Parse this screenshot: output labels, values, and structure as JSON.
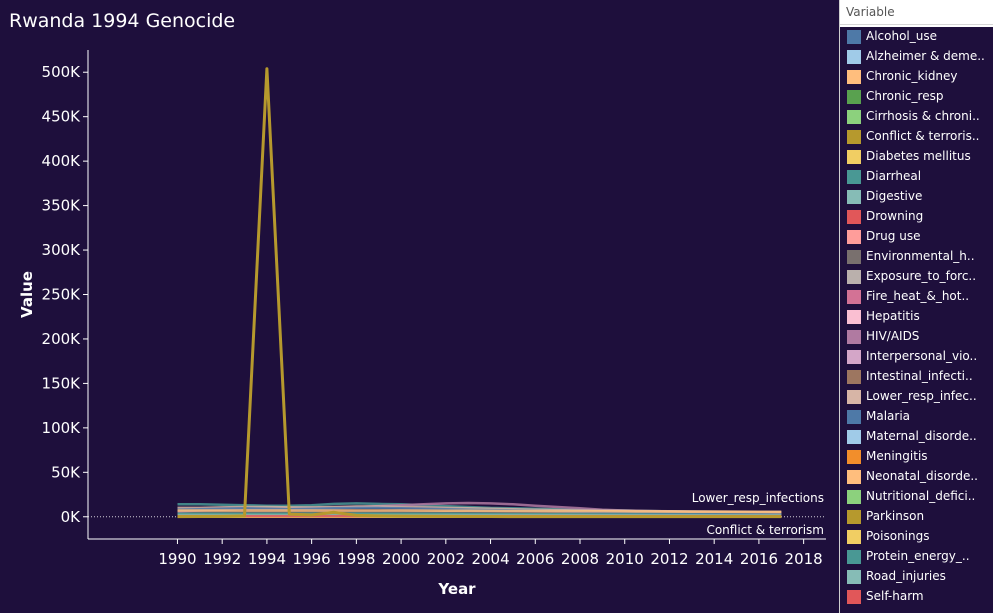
{
  "chart_data": {
    "type": "line",
    "title": "Rwanda 1994 Genocide",
    "xlabel": "Year",
    "ylabel": "Value",
    "xlim": [
      1986,
      2019
    ],
    "ylim": [
      -25000,
      525000
    ],
    "x_ticks": [
      1990,
      1992,
      1994,
      1996,
      1998,
      2000,
      2002,
      2004,
      2006,
      2008,
      2010,
      2012,
      2014,
      2016,
      2018
    ],
    "y_ticks": [
      {
        "value": 0,
        "label": "0K"
      },
      {
        "value": 50000,
        "label": "50K"
      },
      {
        "value": 100000,
        "label": "100K"
      },
      {
        "value": 150000,
        "label": "150K"
      },
      {
        "value": 200000,
        "label": "200K"
      },
      {
        "value": 250000,
        "label": "250K"
      },
      {
        "value": 300000,
        "label": "300K"
      },
      {
        "value": 350000,
        "label": "350K"
      },
      {
        "value": 400000,
        "label": "400K"
      },
      {
        "value": 450000,
        "label": "450K"
      },
      {
        "value": 500000,
        "label": "500K"
      }
    ],
    "grid": false,
    "legend_placement": "right",
    "legend_title": "Variable",
    "x": [
      1990,
      1991,
      1992,
      1993,
      1994,
      1995,
      1996,
      1997,
      1998,
      1999,
      2000,
      2001,
      2002,
      2003,
      2004,
      2005,
      2006,
      2007,
      2008,
      2009,
      2010,
      2011,
      2012,
      2013,
      2014,
      2015,
      2016,
      2017
    ],
    "series": [
      {
        "name": "Alcohol_use",
        "color": "#4e79a7",
        "values": [
          3000,
          3000,
          3100,
          3100,
          3200,
          3100,
          3100,
          3200,
          3200,
          3200,
          3200,
          3200,
          3200,
          3200,
          3100,
          3100,
          3100,
          3000,
          3000,
          3000,
          2900,
          2900,
          2900,
          2900,
          2800,
          2800,
          2800,
          2800
        ]
      },
      {
        "name": "Alzheimer & deme..",
        "color": "#a0cbe8",
        "values": [
          1200,
          1200,
          1200,
          1200,
          1200,
          1200,
          1200,
          1300,
          1300,
          1300,
          1300,
          1300,
          1300,
          1400,
          1400,
          1400,
          1400,
          1400,
          1500,
          1500,
          1500,
          1500,
          1600,
          1600,
          1600,
          1600,
          1700,
          1700
        ]
      },
      {
        "name": "Chronic_kidney",
        "color": "#ffbe7d",
        "values": [
          1800,
          1800,
          1800,
          1900,
          1900,
          1900,
          1900,
          2000,
          2000,
          2000,
          2000,
          2000,
          2000,
          2000,
          2000,
          2000,
          2000,
          2000,
          2000,
          2000,
          2000,
          2000,
          2000,
          2000,
          2000,
          2000,
          2000,
          2000
        ]
      },
      {
        "name": "Chronic_resp",
        "color": "#59a14f",
        "values": [
          2500,
          2500,
          2500,
          2600,
          2600,
          2600,
          2600,
          2700,
          2700,
          2700,
          2700,
          2700,
          2700,
          2700,
          2700,
          2700,
          2700,
          2600,
          2600,
          2600,
          2600,
          2600,
          2600,
          2600,
          2500,
          2500,
          2500,
          2500
        ]
      },
      {
        "name": "Cirrhosis & chroni..",
        "color": "#8cd17d",
        "values": [
          2000,
          2000,
          2000,
          2100,
          2100,
          2100,
          2100,
          2100,
          2100,
          2100,
          2100,
          2100,
          2100,
          2100,
          2100,
          2100,
          2000,
          2000,
          2000,
          2000,
          2000,
          2000,
          2000,
          1900,
          1900,
          1900,
          1900,
          1900
        ]
      },
      {
        "name": "Conflict & terroris..",
        "color": "#b6992d",
        "values": [
          200,
          300,
          400,
          1000,
          504000,
          3000,
          2000,
          5000,
          1500,
          1000,
          800,
          500,
          400,
          300,
          300,
          200,
          200,
          200,
          200,
          200,
          200,
          200,
          200,
          200,
          200,
          200,
          200,
          200
        ]
      },
      {
        "name": "Diabetes mellitus",
        "color": "#f1ce63",
        "values": [
          1800,
          1800,
          1800,
          1800,
          1800,
          1800,
          1800,
          1900,
          1900,
          1900,
          1900,
          1900,
          1900,
          1900,
          2000,
          2000,
          2000,
          2000,
          2000,
          2000,
          2000,
          2100,
          2100,
          2100,
          2100,
          2100,
          2100,
          2100
        ]
      },
      {
        "name": "Diarrheal",
        "color": "#499894",
        "values": [
          14000,
          14000,
          13500,
          13000,
          12500,
          12500,
          13000,
          14500,
          15000,
          14500,
          14000,
          13000,
          12000,
          11000,
          10000,
          9500,
          9000,
          8500,
          8000,
          7500,
          7000,
          6500,
          6000,
          5800,
          5600,
          5400,
          5200,
          5000
        ]
      },
      {
        "name": "Digestive",
        "color": "#86bcb6",
        "values": [
          1500,
          1500,
          1500,
          1500,
          1500,
          1500,
          1500,
          1600,
          1600,
          1600,
          1600,
          1600,
          1600,
          1600,
          1600,
          1600,
          1600,
          1600,
          1600,
          1600,
          1600,
          1600,
          1600,
          1600,
          1600,
          1600,
          1600,
          1600
        ]
      },
      {
        "name": "Drowning",
        "color": "#e15759",
        "values": [
          900,
          900,
          900,
          900,
          900,
          900,
          900,
          900,
          900,
          900,
          900,
          900,
          900,
          900,
          900,
          900,
          900,
          800,
          800,
          800,
          800,
          800,
          800,
          800,
          800,
          800,
          800,
          800
        ]
      },
      {
        "name": "Drug use",
        "color": "#ff9d9a",
        "values": [
          100,
          100,
          100,
          100,
          100,
          100,
          100,
          100,
          100,
          100,
          100,
          100,
          100,
          100,
          100,
          100,
          100,
          100,
          100,
          100,
          100,
          100,
          100,
          100,
          100,
          100,
          100,
          100
        ]
      },
      {
        "name": "Environmental_h..",
        "color": "#79706e",
        "values": [
          5000,
          5000,
          5000,
          5000,
          5000,
          5000,
          5000,
          5100,
          5100,
          5100,
          5100,
          5000,
          5000,
          4900,
          4800,
          4700,
          4600,
          4500,
          4400,
          4300,
          4200,
          4100,
          4000,
          3900,
          3800,
          3700,
          3600,
          3500
        ]
      },
      {
        "name": "Exposure_to_forc..",
        "color": "#bab0ac",
        "values": [
          300,
          300,
          300,
          300,
          300,
          300,
          300,
          300,
          300,
          300,
          300,
          300,
          300,
          300,
          300,
          300,
          300,
          300,
          300,
          300,
          300,
          300,
          300,
          300,
          300,
          300,
          300,
          300
        ]
      },
      {
        "name": "Fire_heat_&_hot..",
        "color": "#d37295",
        "values": [
          600,
          600,
          600,
          600,
          600,
          600,
          600,
          600,
          600,
          600,
          600,
          600,
          600,
          600,
          600,
          600,
          600,
          600,
          600,
          600,
          600,
          600,
          600,
          600,
          600,
          600,
          600,
          600
        ]
      },
      {
        "name": "Hepatitis",
        "color": "#fabfd2",
        "values": [
          400,
          400,
          400,
          400,
          400,
          400,
          400,
          400,
          400,
          400,
          400,
          400,
          400,
          400,
          400,
          400,
          400,
          400,
          400,
          400,
          400,
          400,
          400,
          400,
          400,
          400,
          400,
          400
        ]
      },
      {
        "name": "HIV/AIDS",
        "color": "#b07aa1",
        "values": [
          6000,
          7000,
          8000,
          9000,
          9000,
          9000,
          9500,
          10000,
          11000,
          12000,
          13000,
          14000,
          15000,
          15500,
          15000,
          14000,
          12500,
          11000,
          9500,
          8000,
          7000,
          6500,
          6000,
          5500,
          5200,
          5000,
          4800,
          4600
        ]
      },
      {
        "name": "Interpersonal_vio..",
        "color": "#d4a6c8",
        "values": [
          1500,
          1500,
          1500,
          1500,
          1500,
          1500,
          1500,
          1500,
          1500,
          1500,
          1400,
          1400,
          1400,
          1400,
          1300,
          1300,
          1300,
          1300,
          1300,
          1200,
          1200,
          1200,
          1200,
          1200,
          1200,
          1200,
          1200,
          1200
        ]
      },
      {
        "name": "Intestinal_infecti..",
        "color": "#9d7660",
        "values": [
          2500,
          2500,
          2500,
          2500,
          2500,
          2500,
          2500,
          2600,
          2600,
          2600,
          2600,
          2500,
          2500,
          2400,
          2400,
          2300,
          2300,
          2200,
          2200,
          2100,
          2100,
          2000,
          2000,
          2000,
          1900,
          1900,
          1900,
          1900
        ]
      },
      {
        "name": "Lower_resp_infec..",
        "color": "#d7b5a6",
        "values": [
          10000,
          10000,
          10500,
          11000,
          11000,
          10500,
          10500,
          11000,
          11500,
          11500,
          11000,
          10500,
          10000,
          9500,
          9000,
          8500,
          8000,
          7500,
          7000,
          6800,
          6600,
          6400,
          6200,
          6000,
          5900,
          5800,
          5700,
          5600
        ]
      },
      {
        "name": "Malaria",
        "color": "#4e79a7",
        "values": [
          8000,
          8500,
          9000,
          9500,
          9000,
          8500,
          9000,
          9500,
          10000,
          10000,
          9500,
          9000,
          8500,
          8000,
          7500,
          7000,
          6500,
          6000,
          5500,
          5000,
          4500,
          4200,
          4000,
          3800,
          3600,
          3400,
          3200,
          3000
        ]
      },
      {
        "name": "Maternal_disorde..",
        "color": "#a0cbe8",
        "values": [
          2000,
          2000,
          2000,
          2000,
          2000,
          2000,
          2000,
          2000,
          2000,
          2000,
          1900,
          1900,
          1800,
          1700,
          1600,
          1500,
          1400,
          1300,
          1200,
          1100,
          1000,
          950,
          900,
          850,
          800,
          800,
          750,
          750
        ]
      },
      {
        "name": "Meningitis",
        "color": "#f28e2b",
        "values": [
          2000,
          2000,
          2000,
          2000,
          2000,
          2000,
          2000,
          2000,
          2000,
          2000,
          1900,
          1900,
          1800,
          1800,
          1700,
          1700,
          1600,
          1600,
          1500,
          1500,
          1400,
          1400,
          1300,
          1300,
          1200,
          1200,
          1200,
          1100
        ]
      },
      {
        "name": "Neonatal_disorde..",
        "color": "#ffbe7d",
        "values": [
          7000,
          7000,
          7000,
          7000,
          7000,
          7000,
          7000,
          7100,
          7100,
          7000,
          7000,
          6900,
          6800,
          6700,
          6600,
          6500,
          6400,
          6300,
          6200,
          6100,
          6000,
          5900,
          5800,
          5700,
          5600,
          5500,
          5400,
          5300
        ]
      },
      {
        "name": "Nutritional_defici..",
        "color": "#8cd17d",
        "values": [
          3000,
          3000,
          3000,
          3000,
          3000,
          3000,
          3000,
          3100,
          3100,
          3000,
          3000,
          2900,
          2800,
          2700,
          2600,
          2500,
          2400,
          2300,
          2200,
          2100,
          2000,
          1900,
          1800,
          1700,
          1600,
          1500,
          1400,
          1300
        ]
      },
      {
        "name": "Parkinson",
        "color": "#b6992d",
        "values": [
          100,
          100,
          100,
          100,
          100,
          100,
          100,
          100,
          100,
          100,
          100,
          100,
          100,
          100,
          100,
          100,
          100,
          100,
          100,
          100,
          100,
          100,
          100,
          100,
          100,
          100,
          100,
          100
        ]
      },
      {
        "name": "Poisonings",
        "color": "#f1ce63",
        "values": [
          200,
          200,
          200,
          200,
          200,
          200,
          200,
          200,
          200,
          200,
          200,
          200,
          200,
          200,
          200,
          200,
          200,
          200,
          200,
          200,
          200,
          200,
          200,
          200,
          200,
          200,
          200,
          200
        ]
      },
      {
        "name": "Protein_energy_..",
        "color": "#499894",
        "values": [
          3500,
          3500,
          3500,
          3500,
          3500,
          3500,
          3500,
          3600,
          3600,
          3500,
          3500,
          3400,
          3300,
          3200,
          3100,
          3000,
          2900,
          2800,
          2700,
          2600,
          2500,
          2400,
          2300,
          2200,
          2100,
          2000,
          1900,
          1800
        ]
      },
      {
        "name": "Road_injuries",
        "color": "#86bcb6",
        "values": [
          1500,
          1500,
          1500,
          1500,
          1500,
          1500,
          1500,
          1500,
          1500,
          1600,
          1600,
          1600,
          1600,
          1600,
          1600,
          1600,
          1600,
          1600,
          1600,
          1600,
          1600,
          1600,
          1600,
          1600,
          1600,
          1600,
          1600,
          1600
        ]
      },
      {
        "name": "Self-harm",
        "color": "#e15759",
        "values": [
          800,
          800,
          800,
          800,
          800,
          800,
          800,
          800,
          800,
          800,
          800,
          800,
          800,
          800,
          800,
          800,
          800,
          800,
          800,
          800,
          800,
          800,
          800,
          800,
          800,
          800,
          800,
          800
        ]
      }
    ],
    "annotations": [
      {
        "text": "Lower_resp_infections",
        "series": "Lower_resp_infec.."
      },
      {
        "text": "Conflict & terrorism",
        "series": "Conflict & terroris.."
      }
    ]
  }
}
